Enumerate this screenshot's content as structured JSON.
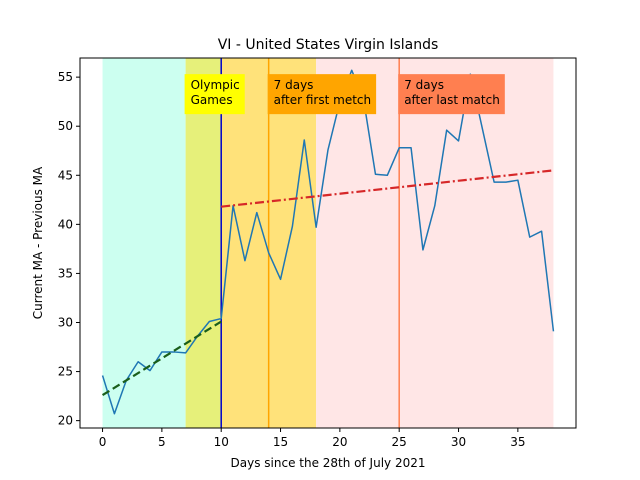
{
  "chart_data": {
    "type": "line",
    "title": "VI - United States Virgin Islands",
    "xlabel": "Days since the 28th of July 2021",
    "ylabel": "Current MA - Previous MA",
    "xlim": [
      -1.9,
      39.9
    ],
    "ylim": [
      19.25,
      56.95
    ],
    "xticks": [
      0,
      5,
      10,
      15,
      20,
      25,
      30,
      35
    ],
    "yticks": [
      20,
      25,
      30,
      35,
      40,
      45,
      50,
      55
    ],
    "grid": false,
    "bands": [
      {
        "x0": 0,
        "x1": 7,
        "color": "#ccfff0"
      },
      {
        "x0": 7,
        "x1": 10,
        "color": "#e6f07a"
      },
      {
        "x0": 10,
        "x1": 18,
        "color": "#ffe27a"
      },
      {
        "x0": 18,
        "x1": 38,
        "color": "#ffe6e6"
      }
    ],
    "vlines": [
      {
        "x": 10,
        "color": "#0000cc"
      },
      {
        "x": 14,
        "color": "#ffa500"
      },
      {
        "x": 25,
        "color": "#ff7f50"
      }
    ],
    "annotations": [
      {
        "lines": [
          "Olympic",
          "Games"
        ],
        "x": 7,
        "y": 55,
        "bg": "#ffff00"
      },
      {
        "lines": [
          "7 days",
          "after first metch"
        ],
        "x": 14,
        "y": 55,
        "bg": "#ffa500"
      },
      {
        "lines": [
          "7 days",
          "after last match"
        ],
        "x": 25,
        "y": 55,
        "bg": "#ff7f50"
      }
    ],
    "series": [
      {
        "color": "#1f77b4",
        "style": "solid",
        "x": [
          0,
          1,
          2,
          3,
          4,
          5,
          6,
          7,
          8,
          9,
          10,
          11,
          12,
          13,
          14,
          15,
          16,
          17,
          18,
          19,
          20,
          21,
          22,
          23,
          24,
          25,
          26,
          27,
          28,
          29,
          30,
          31,
          32,
          33,
          34,
          35,
          36,
          37,
          38
        ],
        "y": [
          24.6,
          20.7,
          24.1,
          26.0,
          25.1,
          27.0,
          27.0,
          26.9,
          28.6,
          30.1,
          30.4,
          41.9,
          36.3,
          41.2,
          37.1,
          34.4,
          39.8,
          48.6,
          39.7,
          47.6,
          52.5,
          55.7,
          52.7,
          45.1,
          45.0,
          47.8,
          47.8,
          37.4,
          41.9,
          49.6,
          48.5,
          55.3,
          49.8,
          44.3,
          44.3,
          44.5,
          38.7,
          39.3,
          29.1
        ]
      },
      {
        "color": "#1a5e1a",
        "style": "dashed",
        "x": [
          0,
          10
        ],
        "y": [
          22.6,
          30.1
        ]
      },
      {
        "color": "#d62728",
        "style": "dashdot",
        "x": [
          10,
          38
        ],
        "y": [
          41.8,
          45.5
        ]
      }
    ]
  }
}
